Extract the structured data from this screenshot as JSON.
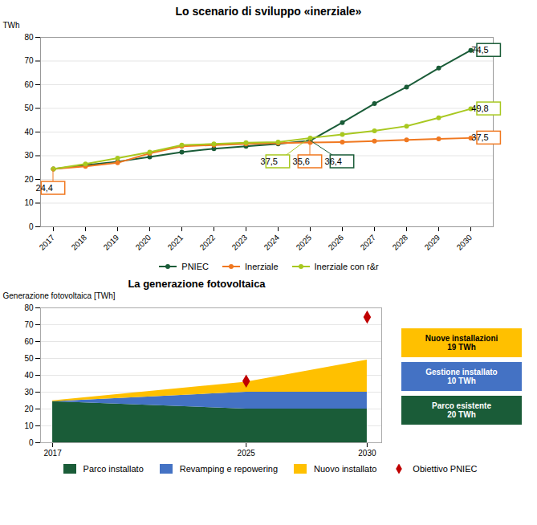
{
  "chart_data": [
    {
      "type": "line",
      "title": "Lo scenario di sviluppo «inerziale»",
      "x": [
        2017,
        2018,
        2019,
        2020,
        2021,
        2022,
        2023,
        2024,
        2025,
        2026,
        2027,
        2028,
        2029,
        2030
      ],
      "series": [
        {
          "name": "PNIEC",
          "color": "#1a5c38",
          "marker": "circle",
          "values": [
            24.4,
            26.0,
            27.5,
            29.5,
            31.5,
            33.0,
            34.0,
            35.0,
            36.4,
            44.0,
            52.0,
            59.0,
            67.0,
            74.5
          ]
        },
        {
          "name": "Inerziale",
          "color": "#f07820",
          "marker": "circle",
          "values": [
            24.4,
            25.5,
            27.0,
            31.0,
            34.0,
            34.5,
            35.0,
            35.3,
            35.6,
            35.8,
            36.2,
            36.7,
            37.1,
            37.5
          ]
        },
        {
          "name": "Inerziale con r&r",
          "color": "#a8c820",
          "marker": "circle",
          "values": [
            24.4,
            26.5,
            29.0,
            31.5,
            34.5,
            35.0,
            35.5,
            35.8,
            37.5,
            39.0,
            40.5,
            42.5,
            46.0,
            49.8
          ]
        }
      ],
      "ylabel": "TWh",
      "xlim": [
        2016.6,
        2030.7
      ],
      "xticks": [
        2017,
        2018,
        2019,
        2020,
        2021,
        2022,
        2023,
        2024,
        2025,
        2026,
        2027,
        2028,
        2029,
        2030
      ],
      "ylim": [
        0,
        80
      ],
      "yticks": [
        0,
        10,
        20,
        30,
        40,
        50,
        60,
        70,
        80
      ],
      "grid": true,
      "legend": "bottom",
      "annotations": [
        {
          "text": "24,4",
          "x": 2017,
          "y": 24.4,
          "color": "#f07820"
        },
        {
          "text": "37,5",
          "x": 2025,
          "y": 37.5,
          "color": "#a8c820"
        },
        {
          "text": "35,6",
          "x": 2025,
          "y": 35.6,
          "color": "#f07820"
        },
        {
          "text": "36,4",
          "x": 2025,
          "y": 36.4,
          "color": "#1a5c38"
        },
        {
          "text": "74,5",
          "x": 2030,
          "y": 74.5,
          "color": "#1a5c38"
        },
        {
          "text": "49,8",
          "x": 2030,
          "y": 49.8,
          "color": "#a8c820"
        },
        {
          "text": "37,5",
          "x": 2030,
          "y": 37.5,
          "color": "#f07820"
        }
      ]
    },
    {
      "type": "area",
      "title": "La generazione fotovoltaica",
      "stacked": true,
      "x": [
        2017,
        2025,
        2030
      ],
      "series": [
        {
          "name": "Parco installato",
          "color": "#1a5c38",
          "values": [
            24.4,
            20.0,
            20.0
          ]
        },
        {
          "name": "Revamping e repowering",
          "color": "#4472c4",
          "values": [
            0.0,
            10.0,
            10.0
          ]
        },
        {
          "name": "Nuovo installato",
          "color": "#ffc000",
          "values": [
            0.5,
            6.0,
            19.0
          ]
        },
        {
          "name": "Obiettivo PNIEC",
          "type": "scatter",
          "marker": "diamond",
          "color": "#c00000",
          "x": [
            2025,
            2030
          ],
          "values": [
            36.5,
            74.5
          ]
        }
      ],
      "ylabel": "Generazione fotovoltaica [TWh]",
      "xlim": [
        2016.5,
        2030.6
      ],
      "xticks": [
        2017,
        2025,
        2030
      ],
      "ylim": [
        0,
        80
      ],
      "yticks": [
        0,
        10,
        20,
        30,
        40,
        50,
        60,
        70,
        80
      ],
      "grid": true,
      "legend": "bottom",
      "annotations": [
        {
          "text": "Nuove installazioni\n19 TWh",
          "color": "#ffc000"
        },
        {
          "text": "Gestione installato\n10 TWh",
          "color": "#4472c4"
        },
        {
          "text": "Parco esistente\n20 TWh",
          "color": "#1a5c38"
        }
      ]
    }
  ]
}
